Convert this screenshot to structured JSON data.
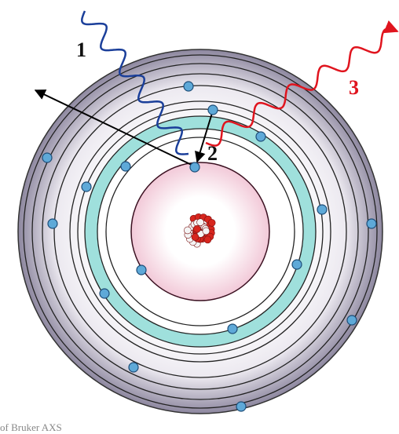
{
  "labels": [
    "1",
    "2",
    "3"
  ],
  "credit": "of Bruker AXS"
}
